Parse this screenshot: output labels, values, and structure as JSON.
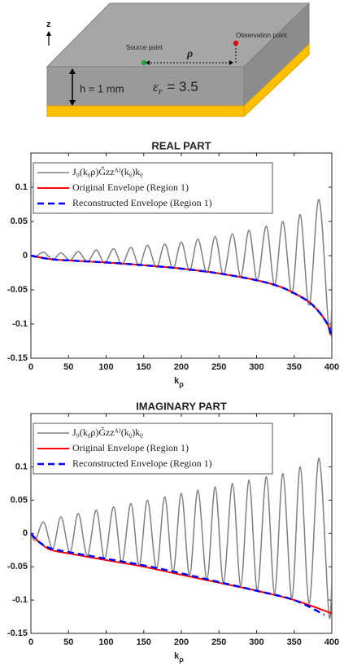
{
  "diagram": {
    "axis": "z",
    "source": "Source point",
    "observation": "Observation point",
    "distance": "ρ",
    "height": "h = 1 mm",
    "permittivity": {
      "symbol": "ε",
      "subscript": "r",
      "value": "= 3.5"
    }
  },
  "chart_data": [
    {
      "type": "line",
      "title": "REAL PART",
      "xlabel": "k",
      "xlabel_subscript": "ρ",
      "xlim": [
        0,
        400
      ],
      "xticks": [
        0,
        50,
        100,
        150,
        200,
        250,
        300,
        350,
        400
      ],
      "ylim": [
        -0.15,
        0.15
      ],
      "yticks": [
        -0.15,
        -0.1,
        -0.05,
        0,
        0.05,
        0.1
      ],
      "legend": "upper left",
      "series": [
        {
          "name": "J₀(kᵨρ)G̃zzᴬᴶ(kᵨ)kᵨ",
          "color": "#808080",
          "linestyle": "solid",
          "x": [
            0,
            6,
            17,
            29,
            40,
            52,
            63,
            75,
            87,
            98,
            110,
            121,
            133,
            144,
            155,
            167,
            178,
            189,
            200,
            211,
            222,
            234,
            245,
            256,
            268,
            279,
            290,
            301,
            313,
            324,
            335,
            347,
            358,
            370,
            383,
            396,
            400
          ],
          "values": [
            0,
            -0.002,
            0.005,
            -0.006,
            0.004,
            -0.007,
            0.006,
            -0.009,
            0.008,
            -0.011,
            0.01,
            -0.013,
            0.012,
            -0.015,
            0.015,
            -0.017,
            0.017,
            -0.019,
            0.02,
            -0.022,
            0.024,
            -0.025,
            0.028,
            -0.028,
            0.032,
            -0.031,
            0.037,
            -0.036,
            0.043,
            -0.043,
            0.05,
            -0.055,
            0.06,
            -0.072,
            0.082,
            -0.108,
            -0.075
          ]
        },
        {
          "name": "Original Envelope (Region 1)",
          "color": "#ff0000",
          "linestyle": "solid",
          "x": [
            0,
            25,
            50,
            100,
            150,
            200,
            250,
            300,
            330,
            350,
            370,
            385,
            395,
            400
          ],
          "values": [
            0,
            -0.005,
            -0.007,
            -0.01,
            -0.014,
            -0.019,
            -0.026,
            -0.036,
            -0.045,
            -0.055,
            -0.068,
            -0.085,
            -0.102,
            -0.118
          ]
        },
        {
          "name": "Reconstructed Envelope (Region 1)",
          "color": "#0000ff",
          "linestyle": "dashed",
          "x": [
            0,
            25,
            50,
            100,
            150,
            200,
            250,
            300,
            330,
            350,
            370,
            385,
            395,
            400
          ],
          "values": [
            0,
            -0.005,
            -0.007,
            -0.01,
            -0.014,
            -0.019,
            -0.026,
            -0.036,
            -0.045,
            -0.055,
            -0.068,
            -0.085,
            -0.102,
            -0.118
          ]
        }
      ]
    },
    {
      "type": "line",
      "title": "IMAGINARY PART",
      "xlabel": "k",
      "xlabel_subscript": "ρ",
      "xlim": [
        0,
        400
      ],
      "xticks": [
        0,
        50,
        100,
        150,
        200,
        250,
        300,
        350,
        400
      ],
      "ylim": [
        -0.15,
        0.18
      ],
      "yticks": [
        -0.15,
        -0.1,
        -0.05,
        0,
        0.05,
        0.1
      ],
      "legend": "upper left",
      "series": [
        {
          "name": "J₀(kᵨρ)G̃zzᴬᴶ(kᵨ)kᵨ",
          "color": "#808080",
          "linestyle": "solid",
          "x": [
            0,
            6,
            17,
            29,
            40,
            52,
            63,
            75,
            87,
            98,
            110,
            121,
            133,
            144,
            155,
            167,
            178,
            189,
            200,
            211,
            222,
            234,
            245,
            256,
            268,
            279,
            290,
            301,
            313,
            324,
            335,
            347,
            358,
            370,
            383,
            396,
            400
          ],
          "values": [
            0,
            -0.01,
            0.017,
            -0.023,
            0.025,
            -0.028,
            0.03,
            -0.033,
            0.035,
            -0.038,
            0.04,
            -0.043,
            0.045,
            -0.048,
            0.05,
            -0.053,
            0.055,
            -0.058,
            0.06,
            -0.063,
            0.065,
            -0.069,
            0.07,
            -0.074,
            0.075,
            -0.079,
            0.08,
            -0.085,
            0.085,
            -0.09,
            0.09,
            -0.097,
            0.1,
            -0.105,
            0.113,
            -0.12,
            -0.072
          ]
        },
        {
          "name": "Original Envelope (Region 1)",
          "color": "#ff0000",
          "linestyle": "solid",
          "x": [
            0,
            10,
            25,
            50,
            100,
            150,
            200,
            250,
            300,
            350,
            400
          ],
          "values": [
            0,
            -0.012,
            -0.024,
            -0.03,
            -0.04,
            -0.05,
            -0.062,
            -0.074,
            -0.086,
            -0.1,
            -0.12
          ]
        },
        {
          "name": "Reconstructed Envelope (Region 1)",
          "color": "#0000ff",
          "linestyle": "dashed",
          "x": [
            0,
            10,
            25,
            50,
            100,
            150,
            200,
            250,
            300,
            350,
            390
          ],
          "values": [
            0,
            -0.012,
            -0.022,
            -0.028,
            -0.038,
            -0.048,
            -0.06,
            -0.073,
            -0.086,
            -0.1,
            -0.122
          ]
        }
      ]
    }
  ]
}
